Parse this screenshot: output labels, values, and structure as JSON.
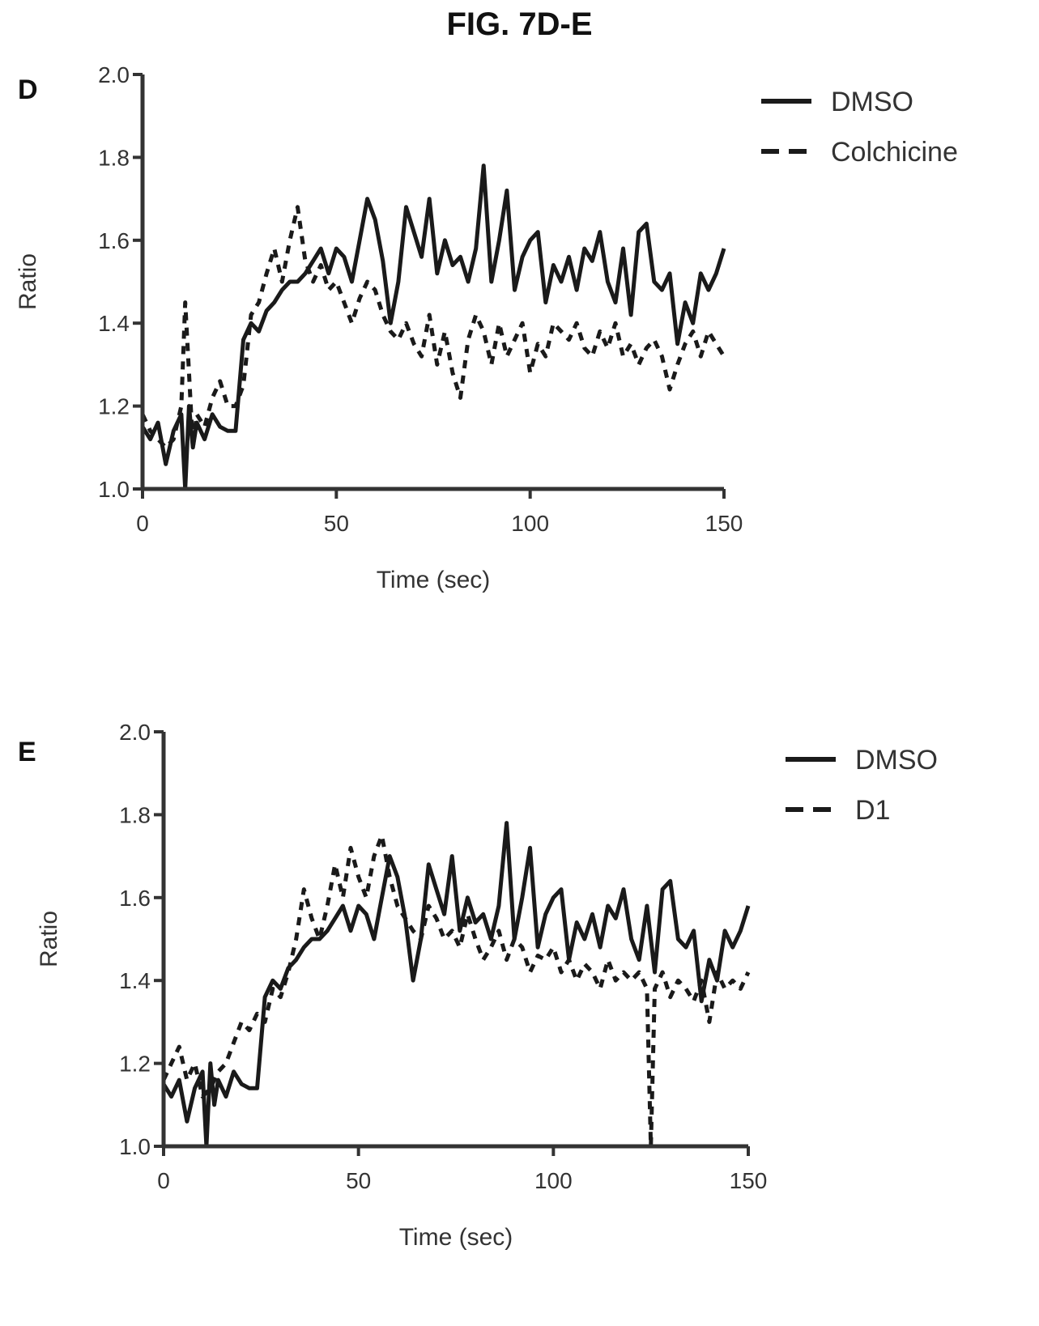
{
  "figure": {
    "title": "FIG. 7D-E"
  },
  "chart_data": [
    {
      "panel": "D",
      "type": "line",
      "xlabel": "Time (sec)",
      "ylabel": "Ratio",
      "xlim": [
        0,
        150
      ],
      "ylim": [
        1.0,
        2.0
      ],
      "x_ticks": [
        "0",
        "50",
        "100",
        "150"
      ],
      "y_ticks": [
        "1.0",
        "1.2",
        "1.4",
        "1.6",
        "1.8",
        "2.0"
      ],
      "legend_position": "top-right",
      "series": [
        {
          "name": "DMSO",
          "style": "solid",
          "x": [
            0,
            2,
            4,
            6,
            8,
            10,
            11,
            12,
            13,
            14,
            16,
            18,
            20,
            22,
            24,
            26,
            28,
            30,
            32,
            34,
            36,
            38,
            40,
            42,
            44,
            46,
            48,
            50,
            52,
            54,
            56,
            58,
            60,
            62,
            64,
            66,
            68,
            70,
            72,
            74,
            76,
            78,
            80,
            82,
            84,
            86,
            88,
            90,
            92,
            94,
            96,
            98,
            100,
            102,
            104,
            106,
            108,
            110,
            112,
            114,
            116,
            118,
            120,
            122,
            124,
            126,
            128,
            130,
            132,
            134,
            136,
            138,
            140,
            142,
            144,
            146,
            148,
            150
          ],
          "values": [
            1.15,
            1.12,
            1.16,
            1.06,
            1.14,
            1.18,
            1.0,
            1.2,
            1.1,
            1.16,
            1.12,
            1.18,
            1.15,
            1.14,
            1.14,
            1.36,
            1.4,
            1.38,
            1.43,
            1.45,
            1.48,
            1.5,
            1.5,
            1.52,
            1.55,
            1.58,
            1.52,
            1.58,
            1.56,
            1.5,
            1.6,
            1.7,
            1.65,
            1.55,
            1.4,
            1.5,
            1.68,
            1.62,
            1.56,
            1.7,
            1.52,
            1.6,
            1.54,
            1.56,
            1.5,
            1.58,
            1.78,
            1.5,
            1.6,
            1.72,
            1.48,
            1.56,
            1.6,
            1.62,
            1.45,
            1.54,
            1.5,
            1.56,
            1.48,
            1.58,
            1.55,
            1.62,
            1.5,
            1.45,
            1.58,
            1.42,
            1.62,
            1.64,
            1.5,
            1.48,
            1.52,
            1.35,
            1.45,
            1.4,
            1.52,
            1.48,
            1.52,
            1.58
          ]
        },
        {
          "name": "Colchicine",
          "style": "dashed",
          "x": [
            0,
            2,
            4,
            6,
            8,
            10,
            11,
            12,
            13,
            14,
            16,
            18,
            20,
            22,
            24,
            26,
            28,
            30,
            32,
            34,
            36,
            38,
            40,
            42,
            44,
            46,
            48,
            50,
            52,
            54,
            56,
            58,
            60,
            62,
            64,
            66,
            68,
            70,
            72,
            74,
            76,
            78,
            80,
            82,
            84,
            86,
            88,
            90,
            92,
            94,
            96,
            98,
            100,
            102,
            104,
            106,
            108,
            110,
            112,
            114,
            116,
            118,
            120,
            122,
            124,
            126,
            128,
            130,
            132,
            134,
            136,
            138,
            140,
            142,
            144,
            146,
            148,
            150
          ],
          "values": [
            1.18,
            1.14,
            1.12,
            1.1,
            1.12,
            1.2,
            1.45,
            1.28,
            1.1,
            1.18,
            1.15,
            1.22,
            1.26,
            1.2,
            1.2,
            1.25,
            1.42,
            1.45,
            1.52,
            1.58,
            1.5,
            1.6,
            1.68,
            1.55,
            1.5,
            1.54,
            1.48,
            1.5,
            1.45,
            1.4,
            1.46,
            1.5,
            1.48,
            1.42,
            1.38,
            1.36,
            1.4,
            1.35,
            1.32,
            1.42,
            1.3,
            1.38,
            1.28,
            1.22,
            1.36,
            1.42,
            1.38,
            1.3,
            1.4,
            1.32,
            1.36,
            1.4,
            1.28,
            1.35,
            1.32,
            1.4,
            1.38,
            1.36,
            1.4,
            1.34,
            1.32,
            1.38,
            1.34,
            1.4,
            1.32,
            1.35,
            1.3,
            1.34,
            1.36,
            1.32,
            1.24,
            1.3,
            1.35,
            1.38,
            1.32,
            1.38,
            1.35,
            1.32
          ]
        }
      ]
    },
    {
      "panel": "E",
      "type": "line",
      "xlabel": "Time (sec)",
      "ylabel": "Ratio",
      "xlim": [
        0,
        150
      ],
      "ylim": [
        1.0,
        2.0
      ],
      "x_ticks": [
        "0",
        "50",
        "100",
        "150"
      ],
      "y_ticks": [
        "1.0",
        "1.2",
        "1.4",
        "1.6",
        "1.8",
        "2.0"
      ],
      "legend_position": "top-right",
      "series": [
        {
          "name": "DMSO",
          "style": "solid",
          "x": [
            0,
            2,
            4,
            6,
            8,
            10,
            11,
            12,
            13,
            14,
            16,
            18,
            20,
            22,
            24,
            26,
            28,
            30,
            32,
            34,
            36,
            38,
            40,
            42,
            44,
            46,
            48,
            50,
            52,
            54,
            56,
            58,
            60,
            62,
            64,
            66,
            68,
            70,
            72,
            74,
            76,
            78,
            80,
            82,
            84,
            86,
            88,
            90,
            92,
            94,
            96,
            98,
            100,
            102,
            104,
            106,
            108,
            110,
            112,
            114,
            116,
            118,
            120,
            122,
            124,
            126,
            128,
            130,
            132,
            134,
            136,
            138,
            140,
            142,
            144,
            146,
            148,
            150
          ],
          "values": [
            1.15,
            1.12,
            1.16,
            1.06,
            1.14,
            1.18,
            1.0,
            1.2,
            1.1,
            1.16,
            1.12,
            1.18,
            1.15,
            1.14,
            1.14,
            1.36,
            1.4,
            1.38,
            1.43,
            1.45,
            1.48,
            1.5,
            1.5,
            1.52,
            1.55,
            1.58,
            1.52,
            1.58,
            1.56,
            1.5,
            1.6,
            1.7,
            1.65,
            1.55,
            1.4,
            1.5,
            1.68,
            1.62,
            1.56,
            1.7,
            1.52,
            1.6,
            1.54,
            1.56,
            1.5,
            1.58,
            1.78,
            1.5,
            1.6,
            1.72,
            1.48,
            1.56,
            1.6,
            1.62,
            1.45,
            1.54,
            1.5,
            1.56,
            1.48,
            1.58,
            1.55,
            1.62,
            1.5,
            1.45,
            1.58,
            1.42,
            1.62,
            1.64,
            1.5,
            1.48,
            1.52,
            1.35,
            1.45,
            1.4,
            1.52,
            1.48,
            1.52,
            1.58
          ]
        },
        {
          "name": "D1",
          "style": "dashed",
          "x": [
            0,
            2,
            4,
            6,
            8,
            10,
            12,
            14,
            16,
            18,
            20,
            22,
            24,
            26,
            28,
            30,
            32,
            34,
            36,
            38,
            40,
            42,
            44,
            46,
            48,
            50,
            52,
            54,
            56,
            58,
            60,
            62,
            64,
            66,
            68,
            70,
            72,
            74,
            76,
            78,
            80,
            82,
            84,
            86,
            88,
            90,
            92,
            94,
            96,
            98,
            100,
            102,
            104,
            106,
            108,
            110,
            112,
            114,
            116,
            118,
            120,
            122,
            124,
            125,
            126,
            128,
            130,
            132,
            134,
            136,
            138,
            140,
            142,
            144,
            146,
            148,
            150
          ],
          "values": [
            1.16,
            1.2,
            1.24,
            1.16,
            1.2,
            1.12,
            1.14,
            1.18,
            1.2,
            1.25,
            1.3,
            1.28,
            1.32,
            1.3,
            1.38,
            1.36,
            1.42,
            1.5,
            1.62,
            1.55,
            1.5,
            1.58,
            1.68,
            1.6,
            1.72,
            1.65,
            1.6,
            1.7,
            1.75,
            1.65,
            1.58,
            1.55,
            1.52,
            1.5,
            1.58,
            1.55,
            1.5,
            1.52,
            1.48,
            1.56,
            1.5,
            1.45,
            1.48,
            1.52,
            1.45,
            1.5,
            1.48,
            1.42,
            1.46,
            1.45,
            1.48,
            1.42,
            1.45,
            1.4,
            1.44,
            1.42,
            1.38,
            1.45,
            1.4,
            1.42,
            1.4,
            1.42,
            1.38,
            1.0,
            1.38,
            1.42,
            1.36,
            1.4,
            1.38,
            1.35,
            1.4,
            1.3,
            1.42,
            1.38,
            1.4,
            1.38,
            1.42
          ]
        }
      ]
    }
  ]
}
